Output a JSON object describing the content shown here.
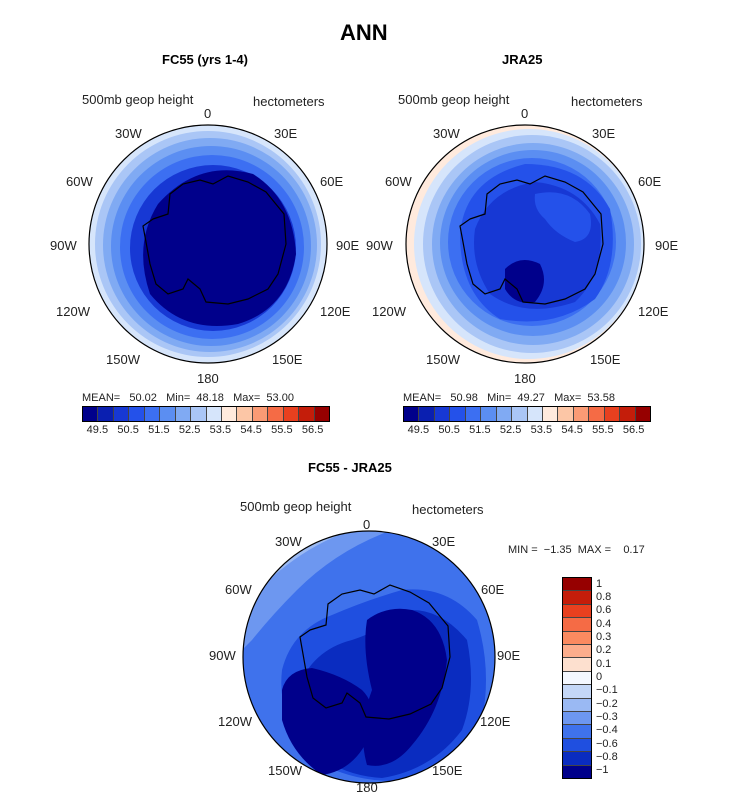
{
  "title": "ANN",
  "palette": [
    "#00008b",
    "#0a1fb0",
    "#1738d4",
    "#2451ea",
    "#3c6ff2",
    "#5b8ef2",
    "#80aaf3",
    "#aac6f6",
    "#d6e5fb",
    "#ffeadd",
    "#fcc6a6",
    "#fa9b75",
    "#f56b45",
    "#e8401f",
    "#c41d0a",
    "#960000"
  ],
  "panel1": {
    "title": "FC55 (yrs 1-4)",
    "field_label": "500mb geop height",
    "units": "hectometers",
    "lon_labels": {
      "n": "0",
      "ne": "30E",
      "e1": "60E",
      "e": "90E",
      "se1": "120E",
      "se": "150E",
      "s": "180",
      "sw": "150W",
      "sw1": "120W",
      "w": "90W",
      "nw1": "60W",
      "nw": "30W"
    },
    "stats": {
      "mean_label": "MEAN=",
      "mean": "50.02",
      "min_label": "Min=",
      "min": "48.18",
      "max_label": "Max=",
      "max": "53.00"
    },
    "ticks": [
      "49.5",
      "50.5",
      "51.5",
      "52.5",
      "53.5",
      "54.5",
      "55.5",
      "56.5"
    ]
  },
  "panel2": {
    "title": "JRA25",
    "field_label": "500mb geop height",
    "units": "hectometers",
    "lon_labels": {
      "n": "0",
      "ne": "30E",
      "e1": "60E",
      "e": "90E",
      "se1": "120E",
      "se": "150E",
      "s": "180",
      "sw": "150W",
      "sw1": "120W",
      "w": "90W",
      "nw1": "60W",
      "nw": "30W"
    },
    "stats": {
      "mean_label": "MEAN=",
      "mean": "50.98",
      "min_label": "Min=",
      "min": "49.27",
      "max_label": "Max=",
      "max": "53.58"
    },
    "ticks": [
      "49.5",
      "50.5",
      "51.5",
      "52.5",
      "53.5",
      "54.5",
      "55.5",
      "56.5"
    ]
  },
  "panel3": {
    "title": "FC55 - JRA25",
    "field_label": "500mb geop height",
    "units": "hectometers",
    "lon_labels": {
      "n": "0",
      "ne": "30E",
      "e1": "60E",
      "e": "90E",
      "se1": "120E",
      "se": "150E",
      "s": "180",
      "sw": "150W",
      "sw1": "120W",
      "w": "90W",
      "nw1": "60W",
      "nw": "30W"
    },
    "minmax": {
      "min_label": "MIN =",
      "min": "−1.35",
      "max_label": "MAX =",
      "max": "0.17"
    },
    "ticks": [
      "1",
      "0.8",
      "0.6",
      "0.4",
      "0.3",
      "0.2",
      "0.1",
      "0",
      "−0.1",
      "−0.2",
      "−0.3",
      "−0.4",
      "−0.6",
      "−0.8",
      "−1"
    ],
    "colors": [
      "#960000",
      "#c41d0a",
      "#e8401f",
      "#f56b45",
      "#fa8a60",
      "#fcad8c",
      "#fde0cf",
      "#f4f8ff",
      "#c4d7f7",
      "#9ab9f3",
      "#6d97f0",
      "#3f72ec",
      "#1f4fe0",
      "#0a2cc0",
      "#00008b"
    ]
  }
}
